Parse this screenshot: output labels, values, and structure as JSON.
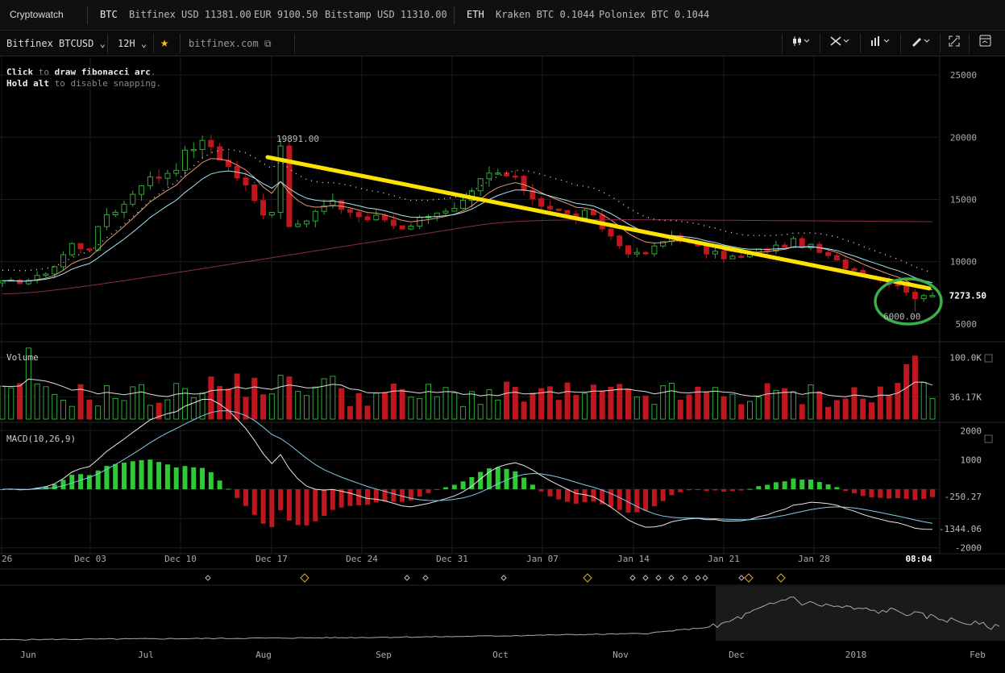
{
  "topbar": {
    "brand": "Cryptowatch",
    "btc_label": "BTC",
    "btc_tickers": [
      "Bitfinex USD 11381.00",
      "EUR 9100.50",
      "Bitstamp USD 11310.00"
    ],
    "eth_label": "ETH",
    "eth_tickers": [
      "Kraken BTC 0.1044",
      "Poloniex BTC 0.1044"
    ]
  },
  "toolbar": {
    "market": "Bitfinex BTCUSD",
    "interval": "12H",
    "exchange_link": "bitfinex.com",
    "star_color": "#f2c21a"
  },
  "hint": {
    "line1_bold_a": "Click",
    "line1_mid": " to ",
    "line1_bold_b": "draw fibonacci arc",
    "line1_end": ".",
    "line2_bold": "Hold alt",
    "line2_end": " to disable snapping."
  },
  "chart_data": [
    {
      "type": "candlestick",
      "title": "",
      "y_ticks": [
        "25000",
        "20000",
        "15000",
        "10000",
        "5000"
      ],
      "y_tick_values": [
        25000,
        20000,
        15000,
        10000,
        5000
      ],
      "ylim": [
        3950,
        26500
      ],
      "x_tick_labels": [
        "26",
        "Dec 03",
        "Dec 10",
        "Dec 17",
        "Dec 24",
        "Dec 31",
        "Jan 07",
        "Jan 14",
        "Jan 21",
        "Jan 28",
        "08:04"
      ],
      "high_label": "19891.00",
      "low_label": "6000.00",
      "last_price_label": "7273.50",
      "last_price": 7273.5,
      "trendline": {
        "color": "#ffe300",
        "from_price": 18400,
        "to_price": 7850
      },
      "circle_color": "#3cae4b",
      "up_color": "#2fa839",
      "down_color": "#c0161e",
      "close_anchors": [
        8300,
        8400,
        8700,
        9600,
        11400,
        11000,
        13800,
        14500,
        16400,
        16800,
        17600,
        19300,
        19500,
        17800,
        16300,
        14000,
        14300,
        12500,
        13800,
        14700,
        14200,
        13400,
        13600,
        12700,
        13200,
        14200,
        13800,
        14900,
        16900,
        17100,
        16300,
        14900,
        14200,
        13600,
        13900,
        12500,
        11100,
        10400,
        11200,
        12300,
        11300,
        10700,
        10400,
        10300,
        10900,
        11200,
        11600,
        11100,
        10300,
        9600,
        9000,
        8500,
        8200,
        7100,
        7273
      ]
    },
    {
      "type": "bar",
      "title": "Volume",
      "y_ticks": [
        "100.0K",
        "36.17K"
      ],
      "y_tick_values": [
        100000,
        36170
      ],
      "ylim": [
        0,
        120000
      ]
    },
    {
      "type": "histogram+line",
      "title": "MACD(10,26,9)",
      "y_ticks": [
        "2000",
        "1000",
        "-250.27",
        "-1344.06",
        "-2000"
      ],
      "y_tick_values": [
        2000,
        1000,
        -250.27,
        -1344.06,
        -2000
      ],
      "ylim": [
        -2200,
        2200
      ]
    },
    {
      "type": "area",
      "title": "",
      "x_tick_labels": [
        "Jun",
        "Jul",
        "Aug",
        "Sep",
        "Oct",
        "Nov",
        "Dec",
        "2018",
        "Feb"
      ]
    }
  ]
}
